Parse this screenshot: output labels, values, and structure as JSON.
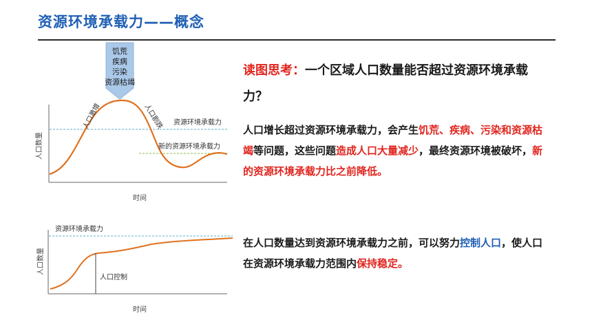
{
  "title": "资源环境承载力——概念",
  "chart1": {
    "callout_lines": [
      "饥荒",
      "疾病",
      "污染",
      "资源枯竭"
    ],
    "label_increase": "人口激增",
    "label_decrease": "人口剧跌",
    "label_capacity": "资源环境承载力",
    "label_new_capacity": "新的资源环境承载力",
    "y_label": "人口数量",
    "x_label": "时间",
    "colors": {
      "curve": "#e0701e",
      "capacity_line": "#5aaec8",
      "new_capacity_line": "#8ab84a",
      "callout": "#aac8e8"
    }
  },
  "chart2": {
    "label_capacity": "资源环境承载力",
    "label_control": "人口控制",
    "y_label": "人口数量",
    "x_label": "时间"
  },
  "question": {
    "label": "读图思考：",
    "text": "一个区域人口数量能否超过资源环境承载力？"
  },
  "para1": {
    "s1": "人口增长超过资源环境承载力，会产生",
    "s2": "饥荒、疾病、污染和资源枯竭",
    "s3": "等问题，这些问题",
    "s4": "造成人口大量减少",
    "s5": "，最终资源环境被破坏，",
    "s6": "新的资源环境承载力比之前降低。"
  },
  "para2": {
    "s1": "在人口数量达到资源环境承载力之前，可以努力",
    "s2": "控制人口",
    "s3": "，使人口在资源环境承载力范围内",
    "s4": "保持稳定。"
  }
}
